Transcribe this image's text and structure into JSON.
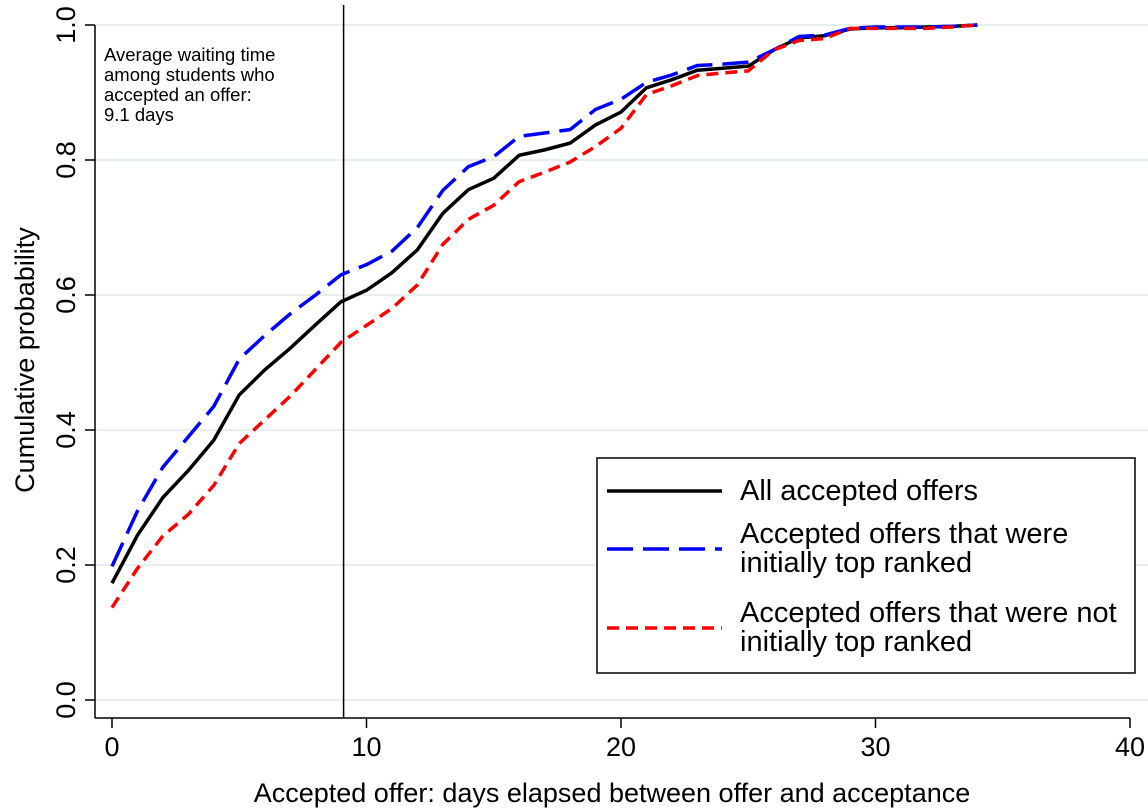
{
  "chart_data": {
    "type": "line",
    "x_label": "Accepted offer: days elapsed between offer and acceptance",
    "y_label": "Cumulative probability",
    "x": [
      0,
      1,
      2,
      3,
      4,
      5,
      6,
      7,
      8,
      9,
      10,
      11,
      12,
      13,
      14,
      15,
      16,
      17,
      18,
      19,
      20,
      21,
      22,
      23,
      24,
      25,
      26,
      27,
      28,
      29,
      30,
      31,
      32,
      33,
      34
    ],
    "series": [
      {
        "name": "All accepted offers",
        "color": "#000000",
        "dash": "solid",
        "values": [
          0.173,
          0.244,
          0.3,
          0.34,
          0.385,
          0.452,
          0.489,
          0.521,
          0.556,
          0.59,
          0.607,
          0.633,
          0.667,
          0.721,
          0.756,
          0.773,
          0.807,
          0.815,
          0.825,
          0.852,
          0.871,
          0.907,
          0.919,
          0.933,
          0.936,
          0.939,
          0.963,
          0.981,
          0.984,
          0.994,
          0.996,
          0.996,
          0.997,
          0.998,
          1.0
        ]
      },
      {
        "name": "Accepted offers that were initially top ranked",
        "color": "#0000ff",
        "dash": "long",
        "values": [
          0.198,
          0.28,
          0.345,
          0.39,
          0.435,
          0.505,
          0.54,
          0.572,
          0.6,
          0.63,
          0.645,
          0.665,
          0.7,
          0.755,
          0.79,
          0.805,
          0.835,
          0.84,
          0.845,
          0.875,
          0.89,
          0.915,
          0.926,
          0.94,
          0.942,
          0.945,
          0.963,
          0.983,
          0.985,
          0.995,
          0.997,
          0.997,
          0.997,
          0.998,
          1.0
        ]
      },
      {
        "name": "Accepted offers that were not initially top ranked",
        "color": "#ff0000",
        "dash": "short",
        "values": [
          0.137,
          0.195,
          0.243,
          0.275,
          0.318,
          0.38,
          0.415,
          0.45,
          0.49,
          0.53,
          0.555,
          0.58,
          0.615,
          0.675,
          0.712,
          0.733,
          0.768,
          0.782,
          0.797,
          0.82,
          0.847,
          0.897,
          0.91,
          0.925,
          0.929,
          0.932,
          0.963,
          0.977,
          0.98,
          0.995,
          0.995,
          0.995,
          0.995,
          0.997,
          1.0
        ]
      }
    ],
    "xlim": [
      0,
      40
    ],
    "xticks": [
      0,
      10,
      20,
      30,
      40
    ],
    "ylim": [
      0,
      1
    ],
    "yticks": [
      {
        "value": 0,
        "label": "0.0"
      },
      0.2,
      0.4,
      0.6,
      0.8,
      {
        "value": 1,
        "label": "1.0"
      }
    ],
    "grid": true,
    "vline": 9.1,
    "annotation": [
      "Average waiting time",
      "among students who",
      "accepted an offer:",
      "9.1 days"
    ],
    "legend": "lower-right"
  }
}
